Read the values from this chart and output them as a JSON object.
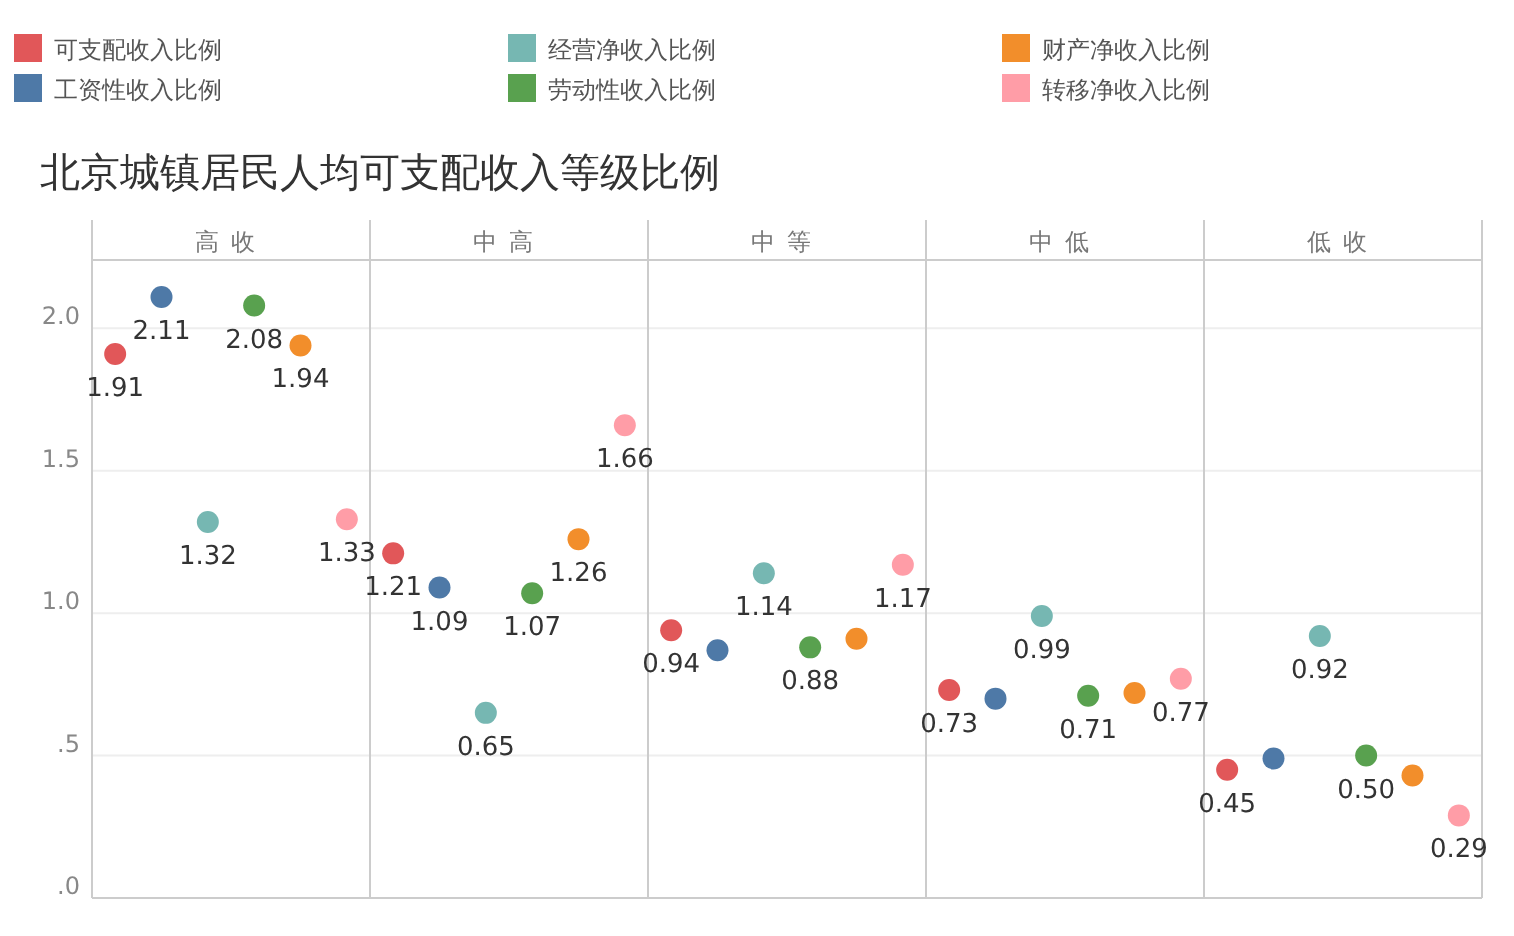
{
  "chart_data": {
    "type": "scatter",
    "title": "北京城镇居民人均可支配收入等级比例",
    "categories": [
      "高收",
      "中高",
      "中等",
      "中低",
      "低收"
    ],
    "series": [
      {
        "name": "可支配收入比例",
        "color": "#e15759",
        "values": [
          1.91,
          1.21,
          0.94,
          0.73,
          0.45
        ],
        "value_labels": [
          "1.91",
          "1.21",
          "0.94",
          "0.73",
          "0.45"
        ]
      },
      {
        "name": "工资性收入比例",
        "color": "#4e79a7",
        "values": [
          2.11,
          1.09,
          0.87,
          0.7,
          0.49
        ],
        "value_labels": [
          "2.11",
          "1.09",
          null,
          null,
          null
        ]
      },
      {
        "name": "经营净收入比例",
        "color": "#76b7b2",
        "values": [
          1.32,
          0.65,
          1.14,
          0.99,
          0.92
        ],
        "value_labels": [
          "1.32",
          "0.65",
          "1.14",
          "0.99",
          "0.92"
        ]
      },
      {
        "name": "劳动性收入比例",
        "color": "#59a14f",
        "values": [
          2.08,
          1.07,
          0.88,
          0.71,
          0.5
        ],
        "value_labels": [
          "2.08",
          "1.07",
          "0.88",
          "0.71",
          "0.50"
        ]
      },
      {
        "name": "财产净收入比例",
        "color": "#f28e2b",
        "values": [
          1.94,
          1.26,
          0.91,
          0.72,
          0.43
        ],
        "value_labels": [
          "1.94",
          "1.26",
          null,
          null,
          null
        ]
      },
      {
        "name": "转移净收入比例",
        "color": "#ff9da7",
        "values": [
          1.33,
          1.66,
          1.17,
          0.77,
          0.29
        ],
        "value_labels": [
          "1.33",
          "1.66",
          "1.17",
          "0.77",
          "0.29"
        ]
      }
    ],
    "ylim": [
      0,
      2.24
    ],
    "yticks": [
      {
        "value": 0,
        "label": ".0"
      },
      {
        "value": 0.5,
        "label": ".5"
      },
      {
        "value": 1.0,
        "label": "1.0"
      },
      {
        "value": 1.5,
        "label": "1.5"
      },
      {
        "value": 2.0,
        "label": "2.0"
      }
    ],
    "grid": "y",
    "legend": "top",
    "marker": "circle"
  }
}
